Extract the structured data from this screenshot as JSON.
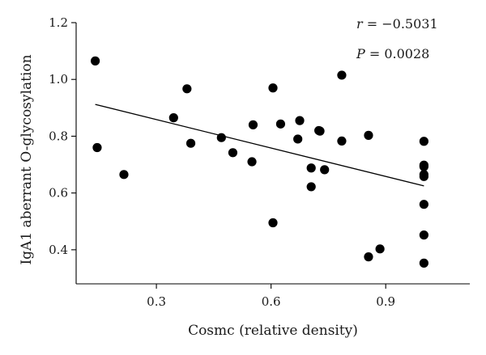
{
  "chart_data": {
    "type": "scatter",
    "xlabel": "Cosmc (relative density)",
    "ylabel": "IgA1 aberrant O-glycosylation",
    "xlim": [
      0.09,
      1.12
    ],
    "ylim": [
      0.28,
      1.2
    ],
    "x_ticks": [
      0.3,
      0.6,
      0.9
    ],
    "x_tick_labels": [
      "0.3",
      "0.6",
      "0.9"
    ],
    "y_ticks": [
      0.4,
      0.6,
      0.8,
      1.0,
      1.2
    ],
    "y_tick_labels": [
      "0.4",
      "0.6",
      "0.8",
      "1.0",
      "1.2"
    ],
    "grid": false,
    "annotations": {
      "r_symbol": "r",
      "r_value": " = −0.5031",
      "p_symbol": "P",
      "p_value": " = 0.0028"
    },
    "points": [
      {
        "x": 0.14,
        "y": 1.065
      },
      {
        "x": 0.145,
        "y": 0.76
      },
      {
        "x": 0.215,
        "y": 0.665
      },
      {
        "x": 0.345,
        "y": 0.865
      },
      {
        "x": 0.38,
        "y": 0.967
      },
      {
        "x": 0.39,
        "y": 0.775
      },
      {
        "x": 0.47,
        "y": 0.795
      },
      {
        "x": 0.5,
        "y": 0.742
      },
      {
        "x": 0.55,
        "y": 0.71
      },
      {
        "x": 0.553,
        "y": 0.84
      },
      {
        "x": 0.605,
        "y": 0.97
      },
      {
        "x": 0.605,
        "y": 0.495
      },
      {
        "x": 0.625,
        "y": 0.843
      },
      {
        "x": 0.67,
        "y": 0.79
      },
      {
        "x": 0.675,
        "y": 0.855
      },
      {
        "x": 0.705,
        "y": 0.688
      },
      {
        "x": 0.705,
        "y": 0.622
      },
      {
        "x": 0.725,
        "y": 0.82
      },
      {
        "x": 0.728,
        "y": 0.818
      },
      {
        "x": 0.74,
        "y": 0.682
      },
      {
        "x": 0.785,
        "y": 1.015
      },
      {
        "x": 0.785,
        "y": 0.783
      },
      {
        "x": 0.855,
        "y": 0.803
      },
      {
        "x": 0.855,
        "y": 0.375
      },
      {
        "x": 0.885,
        "y": 0.403
      },
      {
        "x": 1.0,
        "y": 0.782
      },
      {
        "x": 1.0,
        "y": 0.698
      },
      {
        "x": 1.0,
        "y": 0.693
      },
      {
        "x": 1.0,
        "y": 0.665
      },
      {
        "x": 1.0,
        "y": 0.658
      },
      {
        "x": 1.0,
        "y": 0.56
      },
      {
        "x": 1.0,
        "y": 0.452
      },
      {
        "x": 1.0,
        "y": 0.353
      }
    ],
    "fit_line": [
      {
        "x": 0.14,
        "y": 0.912
      },
      {
        "x": 1.0,
        "y": 0.625
      }
    ]
  }
}
